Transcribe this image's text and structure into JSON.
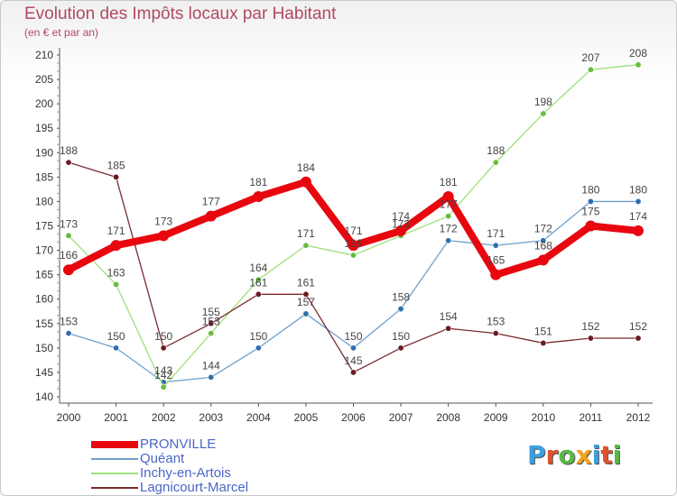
{
  "header": {
    "title": "Evolution des Impôts locaux par Habitant",
    "subtitle": "(en € et par an)"
  },
  "logo": {
    "letters": [
      "P",
      "r",
      "o",
      "x",
      "i",
      "t",
      "i"
    ],
    "colors": [
      "#3aa0e0",
      "#e0522e",
      "#58b948",
      "#f1a21f",
      "#3aa0e0",
      "#e0522e",
      "#58b948"
    ]
  },
  "chart_data": {
    "type": "line",
    "title": "Evolution des Impôts locaux par Habitant",
    "subtitle": "(en € et par an)",
    "xlabel": "",
    "ylabel": "",
    "x": [
      "2000",
      "2001",
      "2002",
      "2003",
      "2004",
      "2005",
      "2006",
      "2007",
      "2008",
      "2009",
      "2010",
      "2011",
      "2012"
    ],
    "ylim": [
      140,
      210
    ],
    "yticks": [
      140,
      145,
      150,
      155,
      160,
      165,
      170,
      175,
      180,
      185,
      190,
      195,
      200,
      205,
      210
    ],
    "grid": false,
    "legend_position": "bottom-left",
    "series": [
      {
        "name": "PRONVILLE",
        "color": "#e8060f",
        "marker": "#e8060f",
        "emphasis": true,
        "values": [
          166,
          171,
          173,
          177,
          181,
          184,
          171,
          174,
          181,
          165,
          168,
          175,
          174
        ]
      },
      {
        "name": "Quéant",
        "color": "#6fa0cc",
        "marker": "#2e6fab",
        "emphasis": false,
        "values": [
          153,
          150,
          143,
          144,
          150,
          157,
          150,
          158,
          172,
          171,
          172,
          180,
          180
        ]
      },
      {
        "name": "Inchy-en-Artois",
        "color": "#9ee07a",
        "marker": "#67bb3c",
        "emphasis": false,
        "values": [
          173,
          163,
          142,
          153,
          164,
          171,
          169,
          173,
          177,
          188,
          198,
          207,
          208
        ]
      },
      {
        "name": "Lagnicourt-Marcel",
        "color": "#7b2b30",
        "marker": "#6b1a20",
        "emphasis": false,
        "values": [
          188,
          185,
          150,
          155,
          161,
          161,
          145,
          150,
          154,
          153,
          151,
          152,
          152
        ]
      }
    ],
    "data_labels": [
      [
        "166",
        "171",
        "173",
        "177",
        "181",
        "184",
        "171",
        "174",
        "181",
        "165",
        "168",
        "175",
        "174"
      ],
      [
        "153",
        "150",
        "143",
        "144",
        "150",
        "157",
        "150",
        "158",
        "172",
        "171",
        "172",
        "180",
        "180"
      ],
      [
        "173",
        "163",
        "142",
        "153",
        "164",
        "171",
        "169",
        "173",
        "177",
        "188",
        "198",
        "207",
        "208"
      ],
      [
        "188",
        "185",
        "150",
        "155",
        "161",
        "161",
        "145",
        "150",
        "154",
        "153",
        "151",
        "152",
        "152"
      ]
    ]
  }
}
